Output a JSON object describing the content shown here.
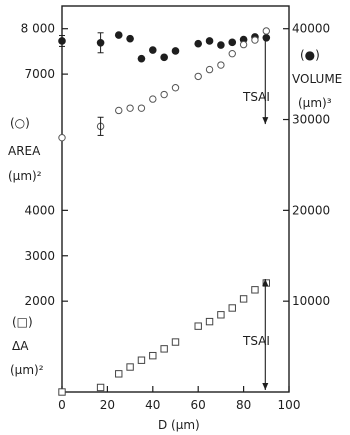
{
  "chart_data": {
    "type": "scatter",
    "xaxis": {
      "label": "D  (µm)",
      "range": [
        0,
        100
      ],
      "ticks": [
        "0",
        "20",
        "40",
        "60",
        "80",
        "100"
      ],
      "tick_values": [
        0,
        20,
        40,
        60,
        80,
        100
      ]
    },
    "left_axis": {
      "range": [
        0,
        8500
      ],
      "ticks": [
        "2000",
        "3000",
        "4000",
        "7000",
        "8 000"
      ],
      "tick_values": [
        2000,
        3000,
        4000,
        7000,
        8000
      ],
      "area_label": {
        "symbol": "(○)",
        "name": "AREA",
        "unit": "(µm)²"
      },
      "delta_label": {
        "symbol": "(□)",
        "name": "ΔA",
        "unit": "(µm)²"
      }
    },
    "right_axis": {
      "range": [
        0,
        42500
      ],
      "ticks": [
        "40000",
        "30000",
        "20000",
        "10000"
      ],
      "tick_values": [
        40000,
        30000,
        20000,
        10000
      ],
      "volume_label": {
        "symbol": "(●)",
        "name": "VOLUME",
        "unit": "(µm)³"
      }
    },
    "annotations": [
      "TSAI",
      "TSAI"
    ],
    "series": [
      {
        "name": "VOLUME",
        "marker": "filled-circle",
        "axis": "right",
        "x": [
          0,
          17,
          25,
          30,
          35,
          40,
          45,
          50,
          60,
          65,
          70,
          75,
          80,
          85,
          90
        ],
        "y": [
          38650,
          38450,
          39300,
          38900,
          36700,
          37650,
          36850,
          37550,
          38350,
          38650,
          38200,
          38500,
          38800,
          39100,
          39000
        ],
        "error_bars": [
          {
            "x": 0,
            "y": 38650,
            "yerr": 600
          },
          {
            "x": 17,
            "y": 38450,
            "yerr": 1100
          }
        ]
      },
      {
        "name": "AREA",
        "marker": "open-circle",
        "axis": "left",
        "x": [
          0,
          17,
          25,
          30,
          35,
          40,
          45,
          50,
          60,
          65,
          70,
          75,
          80,
          85,
          90
        ],
        "y": [
          5600,
          5850,
          6200,
          6250,
          6250,
          6450,
          6550,
          6700,
          6950,
          7100,
          7200,
          7450,
          7650,
          7750,
          7950
        ]
      },
      {
        "name": "ΔA",
        "marker": "open-square",
        "axis": "left",
        "x": [
          0,
          17,
          25,
          30,
          35,
          40,
          45,
          50,
          60,
          65,
          70,
          75,
          80,
          85,
          90
        ],
        "y": [
          0,
          100,
          400,
          550,
          700,
          800,
          950,
          1100,
          1450,
          1550,
          1700,
          1850,
          2050,
          2250,
          2400
        ]
      }
    ],
    "area_error_bar": {
      "x": 17,
      "y": 5850,
      "yerr": 200
    }
  }
}
